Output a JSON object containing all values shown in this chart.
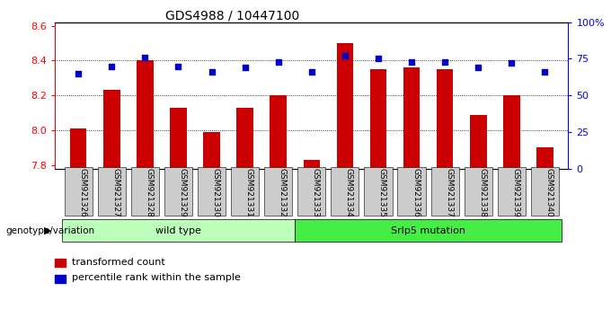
{
  "title": "GDS4988 / 10447100",
  "samples": [
    "GSM921326",
    "GSM921327",
    "GSM921328",
    "GSM921329",
    "GSM921330",
    "GSM921331",
    "GSM921332",
    "GSM921333",
    "GSM921334",
    "GSM921335",
    "GSM921336",
    "GSM921337",
    "GSM921338",
    "GSM921339",
    "GSM921340"
  ],
  "transformed_count": [
    8.01,
    8.23,
    8.4,
    8.13,
    7.99,
    8.13,
    8.2,
    7.83,
    8.5,
    8.35,
    8.36,
    8.35,
    8.09,
    8.2,
    7.9
  ],
  "percentile_rank": [
    65,
    70,
    76,
    70,
    66,
    69,
    73,
    66,
    77,
    75,
    73,
    73,
    69,
    72,
    66
  ],
  "ylim_left": [
    7.78,
    8.62
  ],
  "ylim_right": [
    0,
    100
  ],
  "yticks_left": [
    7.8,
    8.0,
    8.2,
    8.4,
    8.6
  ],
  "yticks_right": [
    0,
    25,
    50,
    75,
    100
  ],
  "grid_values": [
    8.0,
    8.2,
    8.4
  ],
  "bar_color": "#cc0000",
  "dot_color": "#0000cc",
  "wild_type_count": 7,
  "mutation_count": 8,
  "group_labels": [
    "wild type",
    "Srlp5 mutation"
  ],
  "group_colors": [
    "#bbffbb",
    "#44ee44"
  ],
  "xlabel_text": "genotype/variation",
  "legend": [
    "transformed count",
    "percentile rank within the sample"
  ],
  "tick_bg_color": "#cccccc",
  "bar_width": 0.5
}
